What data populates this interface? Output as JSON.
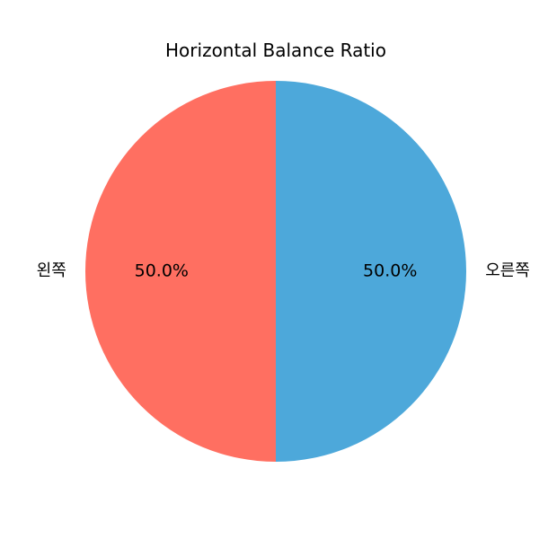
{
  "chart_data": {
    "type": "pie",
    "title": "Horizontal Balance Ratio",
    "slices": [
      {
        "label": "오른쪽",
        "value": 50.0,
        "percent_label": "50.0%",
        "color": "#4da8da"
      },
      {
        "label": "왼쪽",
        "value": 50.0,
        "percent_label": "50.0%",
        "color": "#ff6f61"
      }
    ],
    "start_angle_deg": 90,
    "direction": "clockwise"
  }
}
